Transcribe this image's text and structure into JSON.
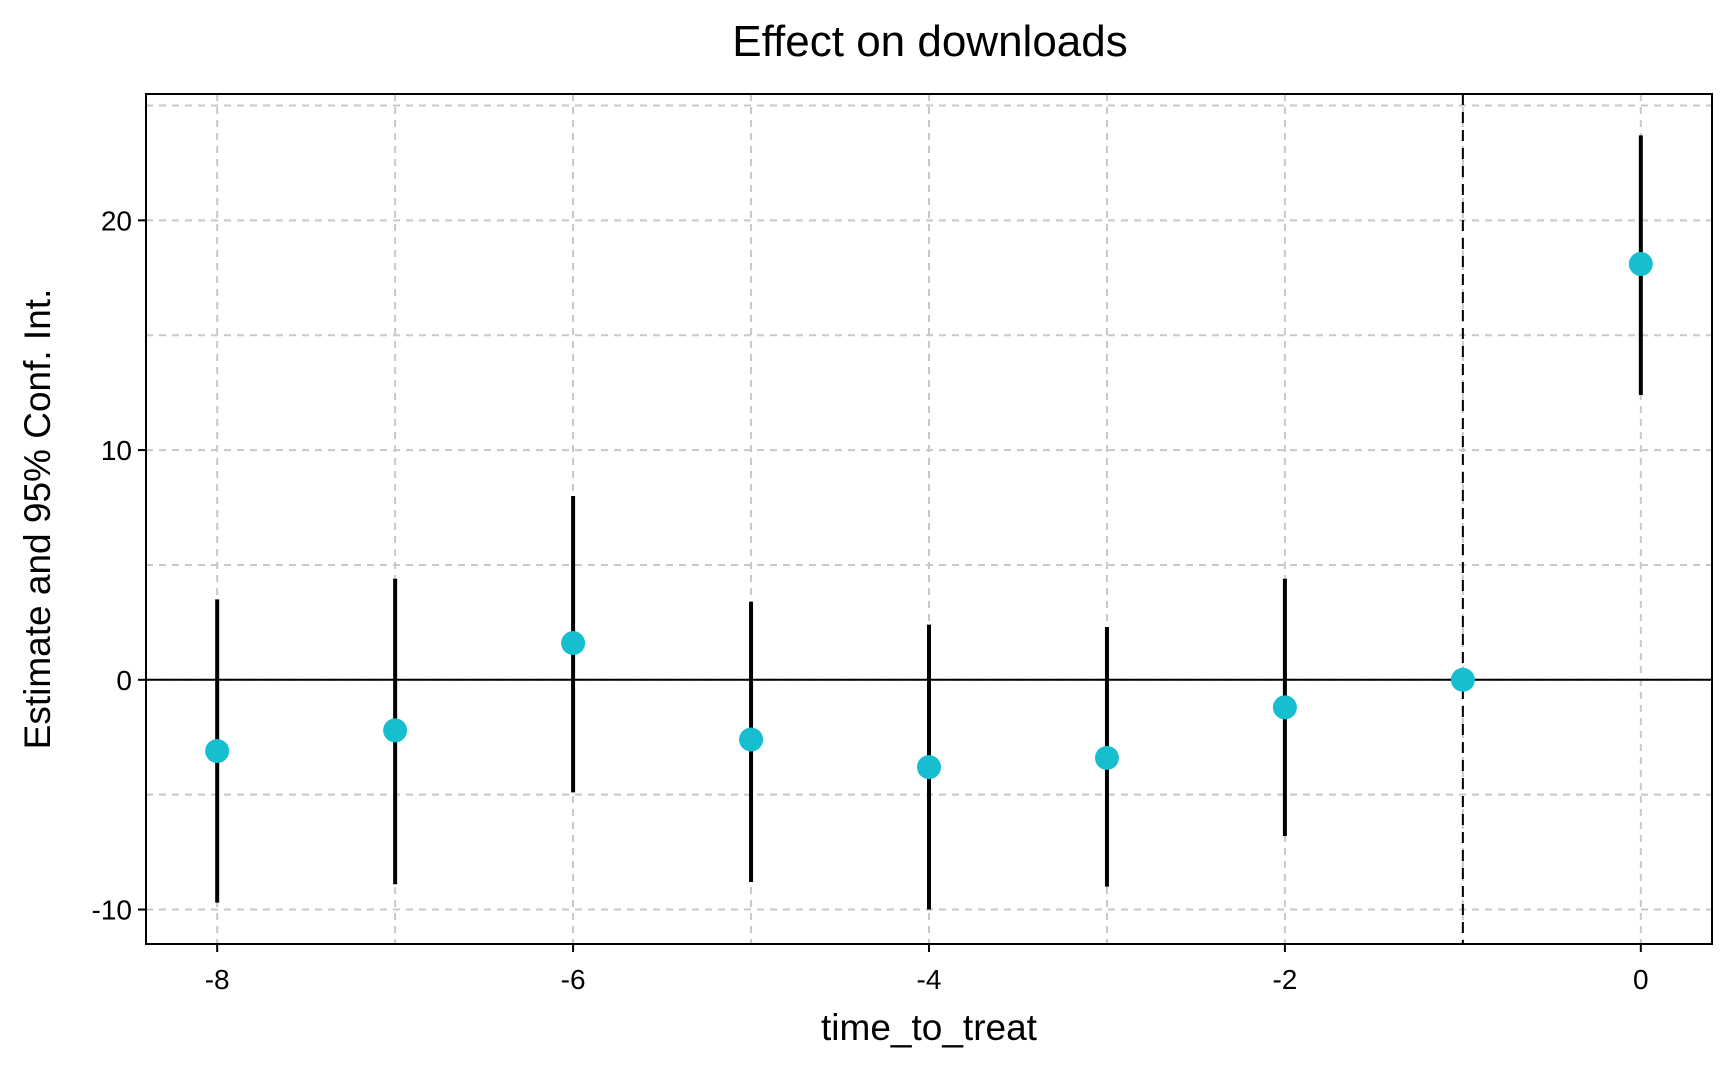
{
  "chart_data": {
    "type": "scatter",
    "title": "Effect on downloads",
    "xlabel": "time_to_treat",
    "ylabel": "Estimate and 95% Conf. Int.",
    "xlim": [
      -8.4,
      0.4
    ],
    "ylim": [
      -11.5,
      25.5
    ],
    "x_ticks": [
      -8,
      -6,
      -4,
      -2,
      0
    ],
    "x_tick_labels": [
      "-8",
      "-6",
      "-4",
      "-2",
      "0"
    ],
    "y_ticks": [
      -10,
      0,
      10,
      20
    ],
    "y_tick_labels": [
      "-10",
      "0",
      "10",
      "20"
    ],
    "x_grid": [
      -8,
      -7,
      -6,
      -5,
      -4,
      -3,
      -2,
      -1,
      0
    ],
    "y_grid": [
      -10,
      -5,
      0,
      5,
      10,
      15,
      20,
      25
    ],
    "grid": true,
    "zero_line": 0,
    "reference_line_x": -1,
    "marker_color": "#17becf",
    "line_color": "#000000",
    "grid_color": "#c8c8c8",
    "points": [
      {
        "x": -8,
        "estimate": -3.1,
        "ci_low": -9.7,
        "ci_high": 3.5
      },
      {
        "x": -7,
        "estimate": -2.2,
        "ci_low": -8.9,
        "ci_high": 4.4
      },
      {
        "x": -6,
        "estimate": 1.6,
        "ci_low": -4.9,
        "ci_high": 8.0
      },
      {
        "x": -5,
        "estimate": -2.6,
        "ci_low": -8.8,
        "ci_high": 3.4
      },
      {
        "x": -4,
        "estimate": -3.8,
        "ci_low": -10.0,
        "ci_high": 2.4
      },
      {
        "x": -3,
        "estimate": -3.4,
        "ci_low": -9.0,
        "ci_high": 2.3
      },
      {
        "x": -2,
        "estimate": -1.2,
        "ci_low": -6.8,
        "ci_high": 4.4
      },
      {
        "x": -1,
        "estimate": 0.0,
        "ci_low": 0.0,
        "ci_high": 0.0
      },
      {
        "x": 0,
        "estimate": 18.1,
        "ci_low": 12.4,
        "ci_high": 23.7
      }
    ]
  }
}
